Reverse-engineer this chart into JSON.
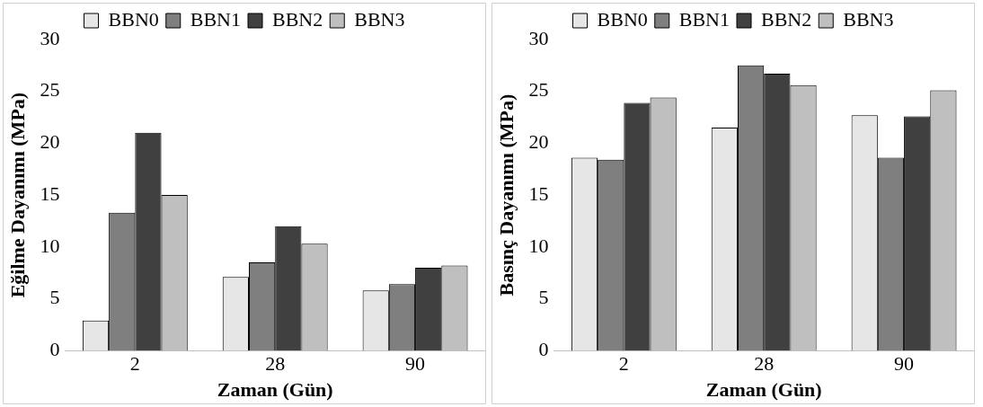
{
  "chart_data": [
    {
      "type": "bar",
      "xlabel": "Zaman (Gün)",
      "ylabel": "Eğilme Dayanımı (MPa)",
      "categories": [
        "2",
        "28",
        "90"
      ],
      "series": [
        {
          "name": "BBN0",
          "color": "#e6e6e6",
          "values": [
            2.9,
            7.1,
            5.8
          ]
        },
        {
          "name": "BBN1",
          "color": "#7f7f7f",
          "values": [
            13.3,
            8.5,
            6.4
          ]
        },
        {
          "name": "BBN2",
          "color": "#404040",
          "values": [
            21.0,
            12.0,
            8.0
          ]
        },
        {
          "name": "BBN3",
          "color": "#bfbfbf",
          "values": [
            15.0,
            10.3,
            8.2
          ]
        }
      ],
      "ylim": [
        0,
        30
      ],
      "yticks": [
        0,
        5,
        10,
        15,
        20,
        25,
        30
      ],
      "grid": false,
      "legend": "top"
    },
    {
      "type": "bar",
      "xlabel": "Zaman (Gün)",
      "ylabel": "Basınç Dayanımı (MPa)",
      "categories": [
        "2",
        "28",
        "90"
      ],
      "series": [
        {
          "name": "BBN0",
          "color": "#e6e6e6",
          "values": [
            18.6,
            21.5,
            22.7
          ]
        },
        {
          "name": "BBN1",
          "color": "#7f7f7f",
          "values": [
            18.4,
            27.5,
            18.6
          ]
        },
        {
          "name": "BBN2",
          "color": "#404040",
          "values": [
            23.9,
            26.7,
            22.6
          ]
        },
        {
          "name": "BBN3",
          "color": "#bfbfbf",
          "values": [
            24.4,
            25.6,
            25.1
          ]
        }
      ],
      "ylim": [
        0,
        30
      ],
      "yticks": [
        0,
        5,
        10,
        15,
        20,
        25,
        30
      ],
      "grid": false,
      "legend": "top"
    }
  ]
}
